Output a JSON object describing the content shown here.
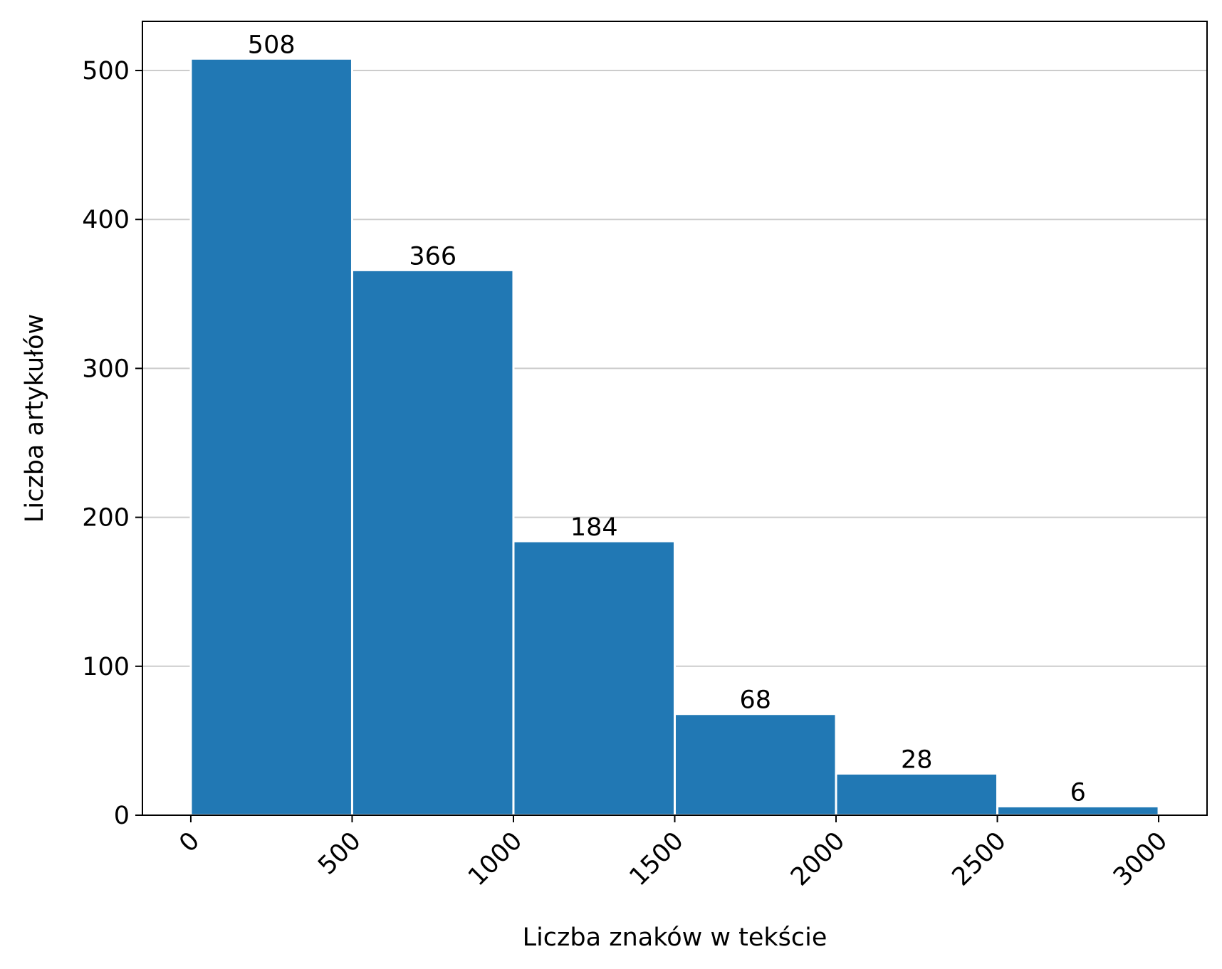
{
  "chart_data": {
    "type": "bar",
    "xlabel": "Liczba znaków w tekście",
    "ylabel": "Liczba artykułów",
    "xlim": [
      -150,
      3150
    ],
    "ylim": [
      0,
      533
    ],
    "bins": [
      {
        "x0": 0,
        "x1": 500,
        "value": 508
      },
      {
        "x0": 500,
        "x1": 1000,
        "value": 366
      },
      {
        "x0": 1000,
        "x1": 1500,
        "value": 184
      },
      {
        "x0": 1500,
        "x1": 2000,
        "value": 68
      },
      {
        "x0": 2000,
        "x1": 2500,
        "value": 28
      },
      {
        "x0": 2500,
        "x1": 3000,
        "value": 6
      }
    ],
    "values": [
      508,
      366,
      184,
      68,
      28,
      6
    ],
    "xticks": [
      0,
      500,
      1000,
      1500,
      2000,
      2500,
      3000
    ],
    "xtick_labels": [
      "0",
      "500",
      "1000",
      "1500",
      "2000",
      "2500",
      "3000"
    ],
    "yticks": [
      0,
      100,
      200,
      300,
      400,
      500
    ],
    "ytick_labels": [
      "0",
      "100",
      "200",
      "300",
      "400",
      "500"
    ],
    "grid": "horizontal",
    "bar_color": "#2178b4",
    "grid_color": "#cccccc",
    "legend": "none"
  }
}
